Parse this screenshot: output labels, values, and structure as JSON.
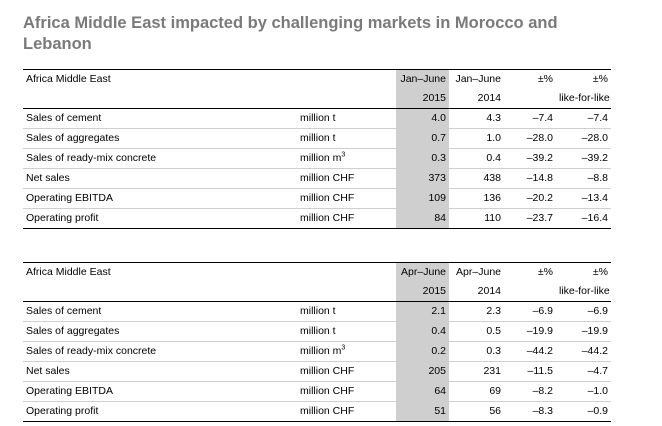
{
  "title": "Africa Middle East impacted by challenging markets in Morocco and Lebanon",
  "tables": [
    {
      "region": "Africa Middle East",
      "col_cur": [
        "Jan–June",
        "2015"
      ],
      "col_prev": [
        "Jan–June",
        "2014"
      ],
      "col_pct": [
        "±%",
        ""
      ],
      "col_lfl": [
        "±%",
        "like-for-like"
      ],
      "rows": [
        {
          "label": "Sales of cement",
          "unit": "million t",
          "cur": "4.0",
          "prev": "4.3",
          "pct": "–7.4",
          "lfl": "–7.4"
        },
        {
          "label": "Sales of aggregates",
          "unit": "million t",
          "cur": "0.7",
          "prev": "1.0",
          "pct": "–28.0",
          "lfl": "–28.0"
        },
        {
          "label": "Sales of ready-mix concrete",
          "unit": "million m",
          "unit_sup": "3",
          "cur": "0.3",
          "prev": "0.4",
          "pct": "–39.2",
          "lfl": "–39.2"
        },
        {
          "label": "Net sales",
          "unit": "million CHF",
          "cur": "373",
          "prev": "438",
          "pct": "–14.8",
          "lfl": "–8.8"
        },
        {
          "label": "Operating EBITDA",
          "unit": "million CHF",
          "cur": "109",
          "prev": "136",
          "pct": "–20.2",
          "lfl": "–13.4"
        },
        {
          "label": "Operating profit",
          "unit": "million CHF",
          "cur": "84",
          "prev": "110",
          "pct": "–23.7",
          "lfl": "–16.4"
        }
      ]
    },
    {
      "region": "Africa Middle East",
      "col_cur": [
        "Apr–June",
        "2015"
      ],
      "col_prev": [
        "Apr–June",
        "2014"
      ],
      "col_pct": [
        "±%",
        ""
      ],
      "col_lfl": [
        "±%",
        "like-for-like"
      ],
      "rows": [
        {
          "label": "Sales of cement",
          "unit": "million t",
          "cur": "2.1",
          "prev": "2.3",
          "pct": "–6.9",
          "lfl": "–6.9"
        },
        {
          "label": "Sales of aggregates",
          "unit": "million t",
          "cur": "0.4",
          "prev": "0.5",
          "pct": "–19.9",
          "lfl": "–19.9"
        },
        {
          "label": "Sales of ready-mix concrete",
          "unit": "million m",
          "unit_sup": "3",
          "cur": "0.2",
          "prev": "0.3",
          "pct": "–44.2",
          "lfl": "–44.2"
        },
        {
          "label": "Net sales",
          "unit": "million CHF",
          "cur": "205",
          "prev": "231",
          "pct": "–11.5",
          "lfl": "–4.7"
        },
        {
          "label": "Operating EBITDA",
          "unit": "million CHF",
          "cur": "64",
          "prev": "69",
          "pct": "–8.2",
          "lfl": "–1.0"
        },
        {
          "label": "Operating profit",
          "unit": "million CHF",
          "cur": "51",
          "prev": "56",
          "pct": "–8.3",
          "lfl": "–0.9"
        }
      ]
    }
  ]
}
